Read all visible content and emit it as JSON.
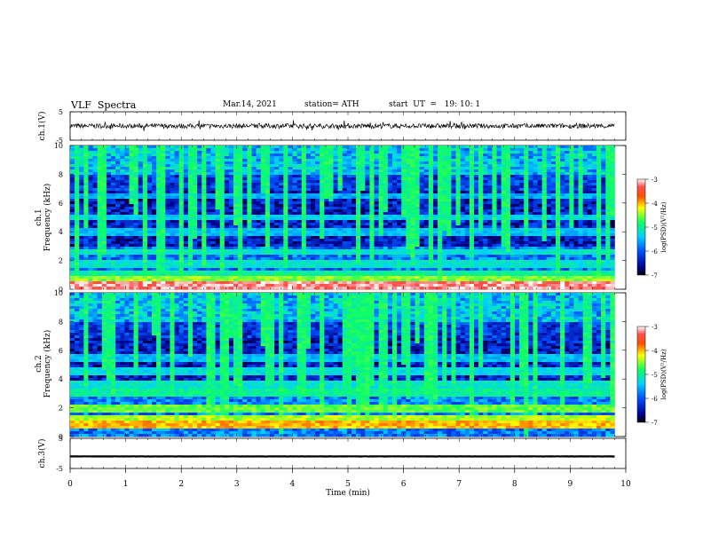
{
  "header": {
    "title": "VLF  Spectra",
    "date": "Mar.14, 2021",
    "station": "station= ATH",
    "start": "start  UT  =   19: 10: 1"
  },
  "chart_data": [
    {
      "type": "line",
      "panel": "ch1-waveform",
      "ylabel": "ch.1(V)",
      "ylim": [
        -5,
        5
      ],
      "yticks": [
        "5",
        "-5"
      ],
      "xlim": [
        0,
        10
      ],
      "baseline": 0,
      "amplitude_approx": 1.2
    },
    {
      "type": "heatmap",
      "panel": "ch1-spectrogram",
      "ylabel": "Frequency  (kHz)",
      "ylabel_channel": "ch.1",
      "ylim": [
        0,
        10
      ],
      "yticks": [
        "0",
        "2",
        "4",
        "6",
        "8",
        "10"
      ],
      "xlim": [
        0,
        9.8
      ],
      "colorbar": {
        "label": "log(PSD)(V²/Hz)",
        "range": [
          -7,
          -3
        ],
        "ticks": [
          "-3",
          "-4",
          "-5",
          "-6",
          "-7"
        ]
      },
      "bands_khz": [
        {
          "f": 0.3,
          "level": -3.2
        },
        {
          "f": 0.6,
          "level": -4.5
        },
        {
          "f": 1.0,
          "level": -5.0
        },
        {
          "f": 1.8,
          "level": -5.2
        },
        {
          "f": 2.6,
          "level": -5.2
        },
        {
          "f": 4.0,
          "level": -5.5
        },
        {
          "f": 5.0,
          "level": -5.4
        },
        {
          "f": 6.5,
          "level": -5.6
        }
      ]
    },
    {
      "type": "heatmap",
      "panel": "ch2-spectrogram",
      "ylabel": "Frequency  (kHz)",
      "ylabel_channel": "ch.2",
      "ylim": [
        0,
        10
      ],
      "yticks": [
        "0",
        "2",
        "4",
        "6",
        "8",
        "10"
      ],
      "xlim": [
        0,
        9.8
      ],
      "colorbar": {
        "label": "log(PSD)(V²/Hz)",
        "range": [
          -7,
          -3
        ],
        "ticks": [
          "-3",
          "-4",
          "-5",
          "-6",
          "-7"
        ]
      },
      "bands_khz": [
        {
          "f": 0.8,
          "level": -4.0
        },
        {
          "f": 1.2,
          "level": -4.4
        },
        {
          "f": 1.9,
          "level": -4.6
        },
        {
          "f": 3.1,
          "level": -5.0
        },
        {
          "f": 3.6,
          "level": -5.2
        },
        {
          "f": 4.6,
          "level": -5.3
        },
        {
          "f": 5.4,
          "level": -5.5
        }
      ]
    },
    {
      "type": "line",
      "panel": "ch3-waveform",
      "ylabel": "ch.3(V)",
      "ylim": [
        -5,
        5
      ],
      "yticks": [
        "5",
        "-5"
      ],
      "xlim": [
        0,
        10
      ],
      "baseline": -1,
      "amplitude_approx": 0.3
    }
  ],
  "xaxis": {
    "label": "Time  (min)",
    "ticks": [
      "0",
      "1",
      "2",
      "3",
      "4",
      "5",
      "6",
      "7",
      "8",
      "9",
      "10"
    ]
  }
}
